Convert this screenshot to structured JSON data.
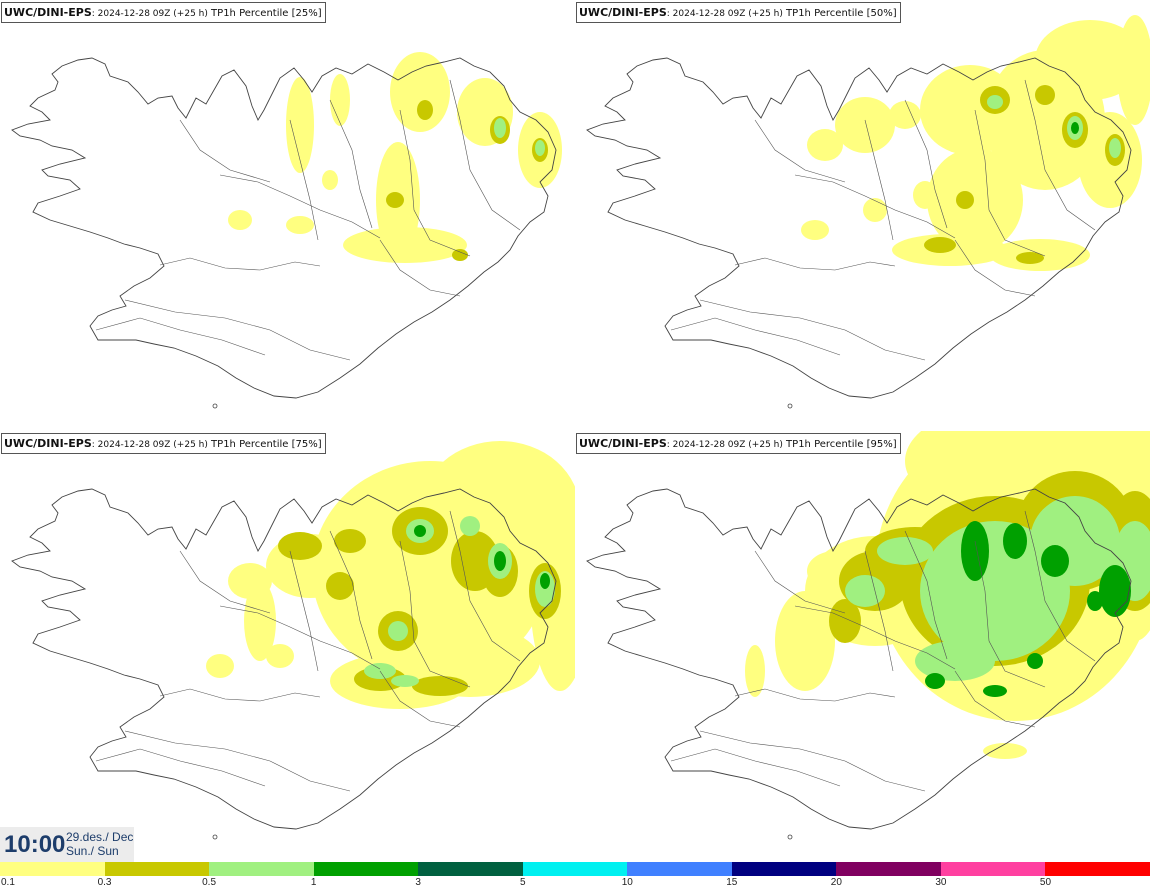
{
  "panels": [
    {
      "source": "UWC/DINI-EPS",
      "run": ": 2024-12-28 09Z (+25 h)",
      "field": " TP1h Percentile [25%]"
    },
    {
      "source": "UWC/DINI-EPS",
      "run": ": 2024-12-28 09Z (+25 h)",
      "field": " TP1h Percentile [50%]"
    },
    {
      "source": "UWC/DINI-EPS",
      "run": ": 2024-12-28 09Z (+25 h)",
      "field": " TP1h Percentile [75%]"
    },
    {
      "source": "UWC/DINI-EPS",
      "run": ": 2024-12-28 09Z (+25 h)",
      "field": " TP1h Percentile [95%]"
    }
  ],
  "valid_time": {
    "time": "10:00",
    "date_line1": "29.des./ Dec",
    "date_line2": "Sun./ Sun"
  },
  "legend": {
    "colors": [
      "#ffff80",
      "#c8c800",
      "#a0f080",
      "#00a000",
      "#006040",
      "#00f0f0",
      "#4080ff",
      "#000080",
      "#800060",
      "#ff40a0",
      "#ff0000"
    ],
    "tick_labels": [
      "0.1",
      "0.3",
      "0.5",
      "1",
      "3",
      "5",
      "10",
      "15",
      "20",
      "30",
      "50"
    ]
  }
}
